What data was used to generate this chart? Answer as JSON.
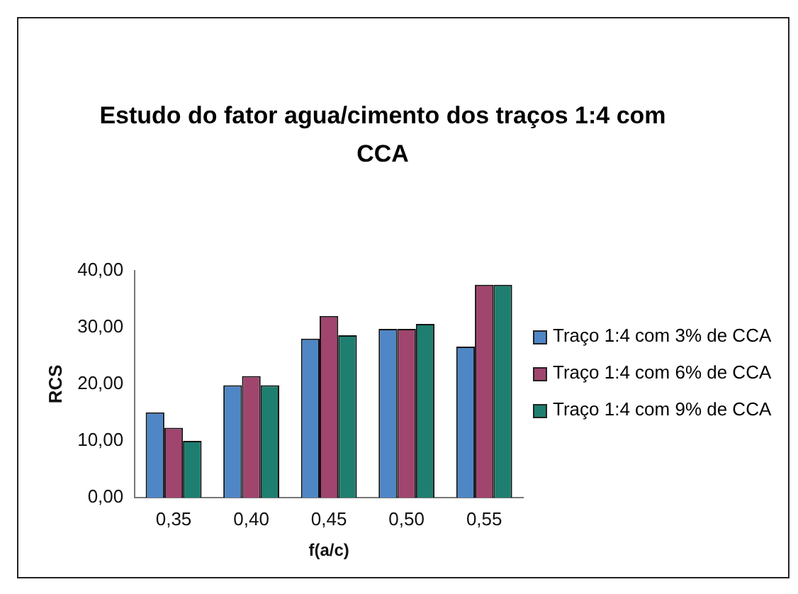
{
  "chart_data": {
    "type": "bar",
    "title": "Estudo do fator agua/cimento dos traços 1:4 com CCA",
    "xlabel": "f(a/c)",
    "ylabel": "RCS",
    "categories": [
      "0,35",
      "0,40",
      "0,45",
      "0,50",
      "0,55"
    ],
    "series": [
      {
        "name": "Traço 1:4 com 3% de CCA",
        "color": "#4f86c6",
        "values": [
          15,
          19.8,
          28,
          29.7,
          26.6
        ]
      },
      {
        "name": "Traço 1:4 com 6% de CCA",
        "color": "#a0456e",
        "values": [
          12.3,
          21.4,
          32,
          29.7,
          37.5
        ]
      },
      {
        "name": "Traço 1:4 com 9% de CCA",
        "color": "#1e7f70",
        "values": [
          10,
          19.8,
          28.6,
          30.6,
          37.5
        ]
      }
    ],
    "ylim": [
      0,
      40
    ],
    "yticks": [
      {
        "value": 0,
        "label": "0,00"
      },
      {
        "value": 10,
        "label": "10,00"
      },
      {
        "value": 20,
        "label": "20,00"
      },
      {
        "value": 30,
        "label": "30,00"
      },
      {
        "value": 40,
        "label": "40,00"
      }
    ],
    "grid": false,
    "legend": "right"
  }
}
